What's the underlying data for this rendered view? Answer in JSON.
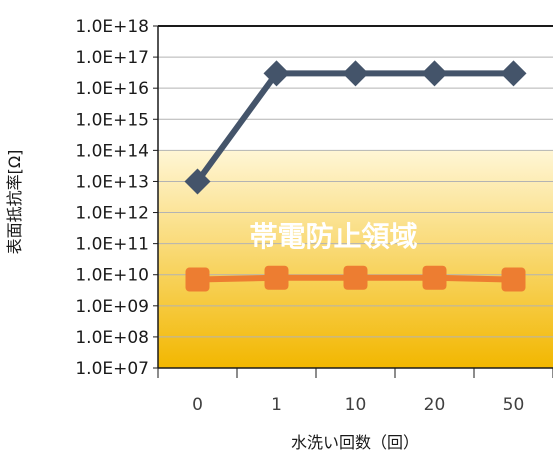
{
  "chart_data": {
    "type": "line",
    "title": "",
    "xlabel": "水洗い回数（回）",
    "ylabel": "表面抵抗率[Ω]",
    "y_scale": "log",
    "ylim": [
      10000000.0,
      1e+18
    ],
    "y_tick_labels": [
      "1.0E+07",
      "1.0E+08",
      "1.0E+09",
      "1.0E+10",
      "1.0E+11",
      "1.0E+12",
      "1.0E+13",
      "1.0E+14",
      "1.0E+15",
      "1.0E+16",
      "1.0E+17",
      "1.0E+18"
    ],
    "categories": [
      "0",
      "1",
      "10",
      "20",
      "50"
    ],
    "series": [
      {
        "values": [
          10000000000000.0,
          3e+16,
          3e+16,
          3e+16,
          3e+16
        ],
        "color": "#44546a",
        "marker": "diamond"
      },
      {
        "values": [
          7000000000.0,
          8000000000.0,
          8000000000.0,
          8000000000.0,
          7000000000.0
        ],
        "color": "#ed7d31",
        "marker": "square"
      }
    ],
    "annotation_band": {
      "label": "帯電防止領域",
      "range": [
        10000000.0,
        100000000000000.0
      ],
      "gradient": [
        "#fff6d5",
        "#f2b700"
      ]
    },
    "grid": true,
    "legend": "none"
  }
}
